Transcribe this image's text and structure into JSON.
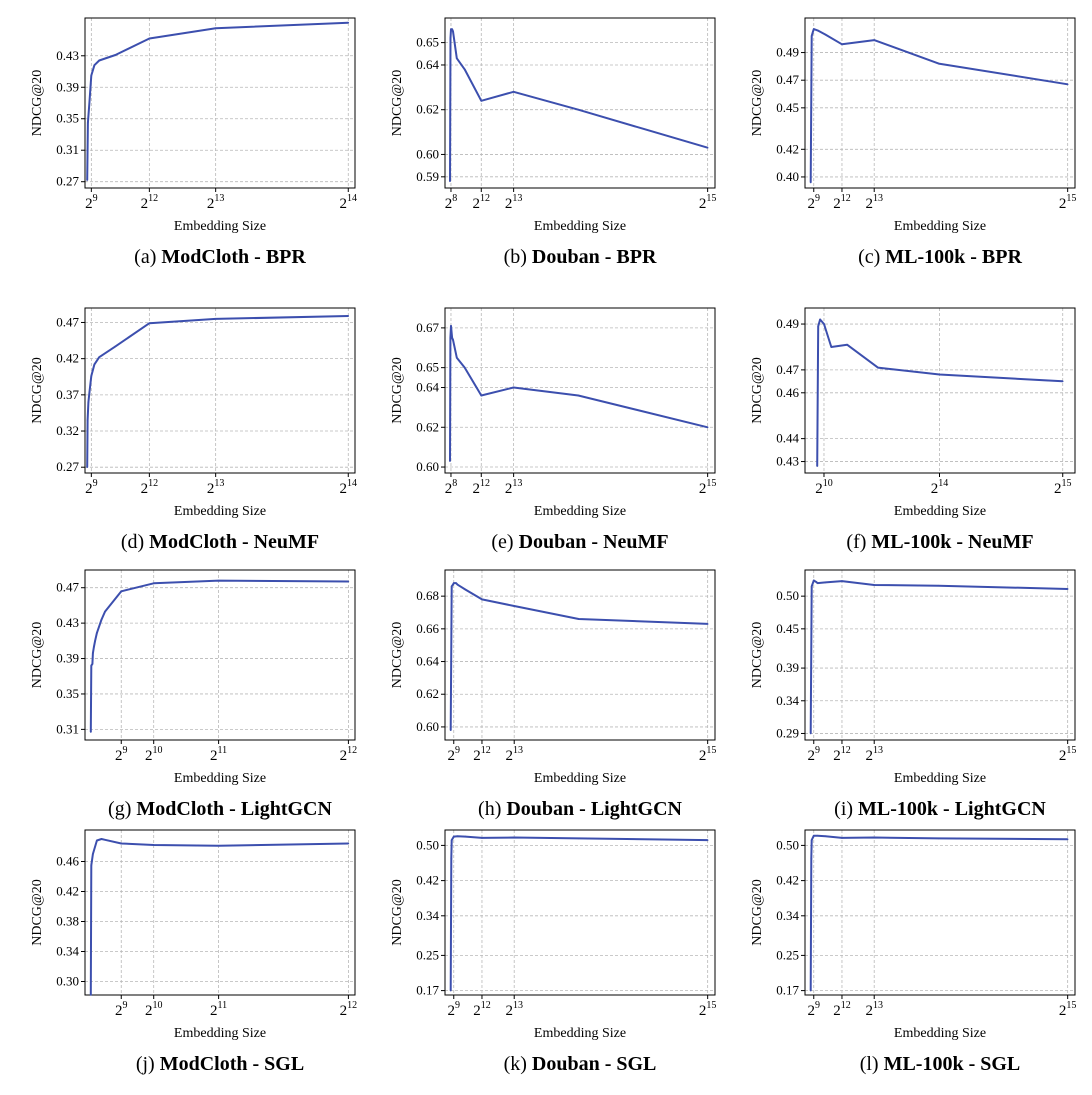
{
  "colors": {
    "line": "#3c4fae",
    "grid": "#b8b8b8"
  },
  "chart_data": [
    {
      "type": "line",
      "label": "(a)",
      "title": "ModCloth - BPR",
      "xlabel": "Embedding Size",
      "ylabel": "NDCG@20",
      "xlim": [
        120,
        16800
      ],
      "ylim": [
        0.262,
        0.478
      ],
      "xticks": [
        {
          "value": 512,
          "base": "2",
          "exp": "9"
        },
        {
          "value": 4096,
          "base": "2",
          "exp": "12"
        },
        {
          "value": 8192,
          "base": "2",
          "exp": "13"
        },
        {
          "value": 16384,
          "base": "2",
          "exp": "14"
        }
      ],
      "yticks": [
        0.27,
        0.31,
        0.35,
        0.39,
        0.43
      ],
      "x": [
        256,
        300,
        400,
        512,
        700,
        1000,
        2000,
        4096,
        8192,
        16384
      ],
      "y": [
        0.272,
        0.345,
        0.372,
        0.405,
        0.418,
        0.424,
        0.431,
        0.452,
        0.465,
        0.472
      ]
    },
    {
      "type": "line",
      "label": "(b)",
      "title": "Douban - BPR",
      "xlabel": "Embedding Size",
      "ylabel": "NDCG@20",
      "xlim": [
        -500,
        33700
      ],
      "ylim": [
        0.585,
        0.661
      ],
      "xticks": [
        {
          "value": 256,
          "base": "2",
          "exp": "8"
        },
        {
          "value": 4096,
          "base": "2",
          "exp": "12"
        },
        {
          "value": 8192,
          "base": "2",
          "exp": "13"
        },
        {
          "value": 32768,
          "base": "2",
          "exp": "15"
        }
      ],
      "yticks": [
        0.59,
        0.6,
        0.62,
        0.64,
        0.65
      ],
      "x": [
        128,
        200,
        256,
        400,
        512,
        1000,
        2000,
        4096,
        8192,
        16384,
        32768
      ],
      "y": [
        0.588,
        0.652,
        0.656,
        0.656,
        0.655,
        0.643,
        0.638,
        0.624,
        0.628,
        0.62,
        0.603
      ]
    },
    {
      "type": "line",
      "label": "(c)",
      "title": "ML-100k - BPR",
      "xlabel": "Embedding Size",
      "ylabel": "NDCG@20",
      "xlim": [
        -600,
        33700
      ],
      "ylim": [
        0.392,
        0.515
      ],
      "xticks": [
        {
          "value": 512,
          "base": "2",
          "exp": "9"
        },
        {
          "value": 4096,
          "base": "2",
          "exp": "12"
        },
        {
          "value": 8192,
          "base": "2",
          "exp": "13"
        },
        {
          "value": 32768,
          "base": "2",
          "exp": "15"
        }
      ],
      "yticks": [
        0.4,
        0.42,
        0.45,
        0.47,
        0.49
      ],
      "x": [
        128,
        256,
        400,
        512,
        1000,
        2000,
        4096,
        8192,
        16384,
        32768
      ],
      "y": [
        0.396,
        0.502,
        0.505,
        0.507,
        0.506,
        0.503,
        0.496,
        0.499,
        0.482,
        0.467
      ]
    },
    {
      "type": "line",
      "label": "(d)",
      "title": "ModCloth - NeuMF",
      "xlabel": "Embedding Size",
      "ylabel": "NDCG@20",
      "xlim": [
        120,
        16800
      ],
      "ylim": [
        0.262,
        0.49
      ],
      "xticks": [
        {
          "value": 512,
          "base": "2",
          "exp": "9"
        },
        {
          "value": 4096,
          "base": "2",
          "exp": "12"
        },
        {
          "value": 8192,
          "base": "2",
          "exp": "13"
        },
        {
          "value": 16384,
          "base": "2",
          "exp": "14"
        }
      ],
      "yticks": [
        0.27,
        0.32,
        0.37,
        0.42,
        0.47
      ],
      "x": [
        256,
        280,
        330,
        400,
        512,
        700,
        1000,
        2000,
        4096,
        8192,
        16384
      ],
      "y": [
        0.27,
        0.335,
        0.36,
        0.374,
        0.396,
        0.412,
        0.422,
        0.437,
        0.469,
        0.475,
        0.479
      ]
    },
    {
      "type": "line",
      "label": "(e)",
      "title": "Douban - NeuMF",
      "xlabel": "Embedding Size",
      "ylabel": "NDCG@20",
      "xlim": [
        -500,
        33700
      ],
      "ylim": [
        0.597,
        0.68
      ],
      "xticks": [
        {
          "value": 256,
          "base": "2",
          "exp": "8"
        },
        {
          "value": 4096,
          "base": "2",
          "exp": "12"
        },
        {
          "value": 8192,
          "base": "2",
          "exp": "13"
        },
        {
          "value": 32768,
          "base": "2",
          "exp": "15"
        }
      ],
      "yticks": [
        0.6,
        0.62,
        0.64,
        0.65,
        0.67
      ],
      "x": [
        128,
        180,
        256,
        400,
        512,
        1000,
        2000,
        4096,
        8192,
        16384,
        32768
      ],
      "y": [
        0.603,
        0.665,
        0.671,
        0.665,
        0.664,
        0.655,
        0.65,
        0.636,
        0.64,
        0.636,
        0.62
      ]
    },
    {
      "type": "line",
      "label": "(f)",
      "title": "ML-100k - NeuMF",
      "xlabel": "Embedding Size",
      "ylabel": "NDCG@20",
      "xlim": [
        -1500,
        34400
      ],
      "ylim": [
        0.425,
        0.497
      ],
      "xticks": [
        {
          "value": 1024,
          "base": "2",
          "exp": "10"
        },
        {
          "value": 16384,
          "base": "2",
          "exp": "14"
        },
        {
          "value": 32768,
          "base": "2",
          "exp": "15"
        }
      ],
      "yticks": [
        0.43,
        0.44,
        0.46,
        0.47,
        0.49
      ],
      "x": [
        128,
        256,
        512,
        1024,
        2000,
        4096,
        8192,
        16384,
        32768
      ],
      "y": [
        0.428,
        0.489,
        0.492,
        0.49,
        0.48,
        0.481,
        0.471,
        0.468,
        0.465
      ]
    },
    {
      "type": "line",
      "label": "(g)",
      "title": "ModCloth - LightGCN",
      "xlabel": "Embedding Size",
      "ylabel": "NDCG@20",
      "xlim": [
        -60,
        4200
      ],
      "ylim": [
        0.298,
        0.49
      ],
      "xticks": [
        {
          "value": 512,
          "base": "2",
          "exp": "9"
        },
        {
          "value": 1024,
          "base": "2",
          "exp": "10"
        },
        {
          "value": 2048,
          "base": "2",
          "exp": "11"
        },
        {
          "value": 4096,
          "base": "2",
          "exp": "12"
        }
      ],
      "yticks": [
        0.31,
        0.35,
        0.39,
        0.43,
        0.47
      ],
      "x": [
        32,
        40,
        56,
        64,
        80,
        100,
        128,
        200,
        256,
        512,
        1024,
        2048,
        4096
      ],
      "y": [
        0.307,
        0.382,
        0.384,
        0.396,
        0.403,
        0.41,
        0.419,
        0.434,
        0.443,
        0.466,
        0.475,
        0.478,
        0.477
      ]
    },
    {
      "type": "line",
      "label": "(h)",
      "title": "Douban - LightGCN",
      "xlabel": "Embedding Size",
      "ylabel": "NDCG@20",
      "xlim": [
        -600,
        33700
      ],
      "ylim": [
        0.592,
        0.696
      ],
      "xticks": [
        {
          "value": 512,
          "base": "2",
          "exp": "9"
        },
        {
          "value": 4096,
          "base": "2",
          "exp": "12"
        },
        {
          "value": 8192,
          "base": "2",
          "exp": "13"
        },
        {
          "value": 32768,
          "base": "2",
          "exp": "15"
        }
      ],
      "yticks": [
        0.6,
        0.62,
        0.64,
        0.66,
        0.68
      ],
      "x": [
        128,
        256,
        400,
        512,
        800,
        1000,
        2000,
        4096,
        8192,
        16384,
        32768
      ],
      "y": [
        0.598,
        0.686,
        0.687,
        0.688,
        0.688,
        0.687,
        0.684,
        0.678,
        0.674,
        0.666,
        0.663
      ]
    },
    {
      "type": "line",
      "label": "(i)",
      "title": "ML-100k - LightGCN",
      "xlabel": "Embedding Size",
      "ylabel": "NDCG@20",
      "xlim": [
        -600,
        33700
      ],
      "ylim": [
        0.28,
        0.54
      ],
      "xticks": [
        {
          "value": 512,
          "base": "2",
          "exp": "9"
        },
        {
          "value": 4096,
          "base": "2",
          "exp": "12"
        },
        {
          "value": 8192,
          "base": "2",
          "exp": "13"
        },
        {
          "value": 32768,
          "base": "2",
          "exp": "15"
        }
      ],
      "yticks": [
        0.29,
        0.34,
        0.39,
        0.45,
        0.5
      ],
      "x": [
        128,
        256,
        512,
        800,
        1000,
        2000,
        4096,
        8192,
        16384,
        32768
      ],
      "y": [
        0.29,
        0.515,
        0.524,
        0.522,
        0.52,
        0.521,
        0.523,
        0.517,
        0.516,
        0.511
      ]
    },
    {
      "type": "line",
      "label": "(j)",
      "title": "ModCloth - SGL",
      "xlabel": "Embedding Size",
      "ylabel": "NDCG@20",
      "xlim": [
        -60,
        4200
      ],
      "ylim": [
        0.282,
        0.502
      ],
      "xticks": [
        {
          "value": 512,
          "base": "2",
          "exp": "9"
        },
        {
          "value": 1024,
          "base": "2",
          "exp": "10"
        },
        {
          "value": 2048,
          "base": "2",
          "exp": "11"
        },
        {
          "value": 4096,
          "base": "2",
          "exp": "12"
        }
      ],
      "yticks": [
        0.3,
        0.34,
        0.38,
        0.42,
        0.46
      ],
      "x": [
        32,
        40,
        64,
        128,
        200,
        256,
        512,
        1024,
        2048,
        4096
      ],
      "y": [
        0.282,
        0.455,
        0.47,
        0.488,
        0.49,
        0.489,
        0.484,
        0.482,
        0.481,
        0.484
      ]
    },
    {
      "type": "line",
      "label": "(k)",
      "title": "Douban - SGL",
      "xlabel": "Embedding Size",
      "ylabel": "NDCG@20",
      "xlim": [
        -600,
        33700
      ],
      "ylim": [
        0.16,
        0.535
      ],
      "xticks": [
        {
          "value": 512,
          "base": "2",
          "exp": "9"
        },
        {
          "value": 4096,
          "base": "2",
          "exp": "12"
        },
        {
          "value": 8192,
          "base": "2",
          "exp": "13"
        },
        {
          "value": 32768,
          "base": "2",
          "exp": "15"
        }
      ],
      "yticks": [
        0.17,
        0.25,
        0.34,
        0.42,
        0.5
      ],
      "x": [
        128,
        200,
        256,
        512,
        1000,
        2000,
        4096,
        8192,
        16384,
        32768
      ],
      "y": [
        0.17,
        0.47,
        0.512,
        0.52,
        0.521,
        0.52,
        0.517,
        0.518,
        0.516,
        0.512
      ]
    },
    {
      "type": "line",
      "label": "(l)",
      "title": "ML-100k - SGL",
      "xlabel": "Embedding Size",
      "ylabel": "NDCG@20",
      "xlim": [
        -600,
        33700
      ],
      "ylim": [
        0.16,
        0.535
      ],
      "xticks": [
        {
          "value": 512,
          "base": "2",
          "exp": "9"
        },
        {
          "value": 4096,
          "base": "2",
          "exp": "12"
        },
        {
          "value": 8192,
          "base": "2",
          "exp": "13"
        },
        {
          "value": 32768,
          "base": "2",
          "exp": "15"
        }
      ],
      "yticks": [
        0.17,
        0.25,
        0.34,
        0.42,
        0.5
      ],
      "x": [
        128,
        200,
        256,
        512,
        1000,
        2000,
        4096,
        8192,
        16384,
        32768
      ],
      "y": [
        0.17,
        0.47,
        0.512,
        0.522,
        0.522,
        0.521,
        0.517,
        0.518,
        0.516,
        0.514
      ]
    }
  ]
}
